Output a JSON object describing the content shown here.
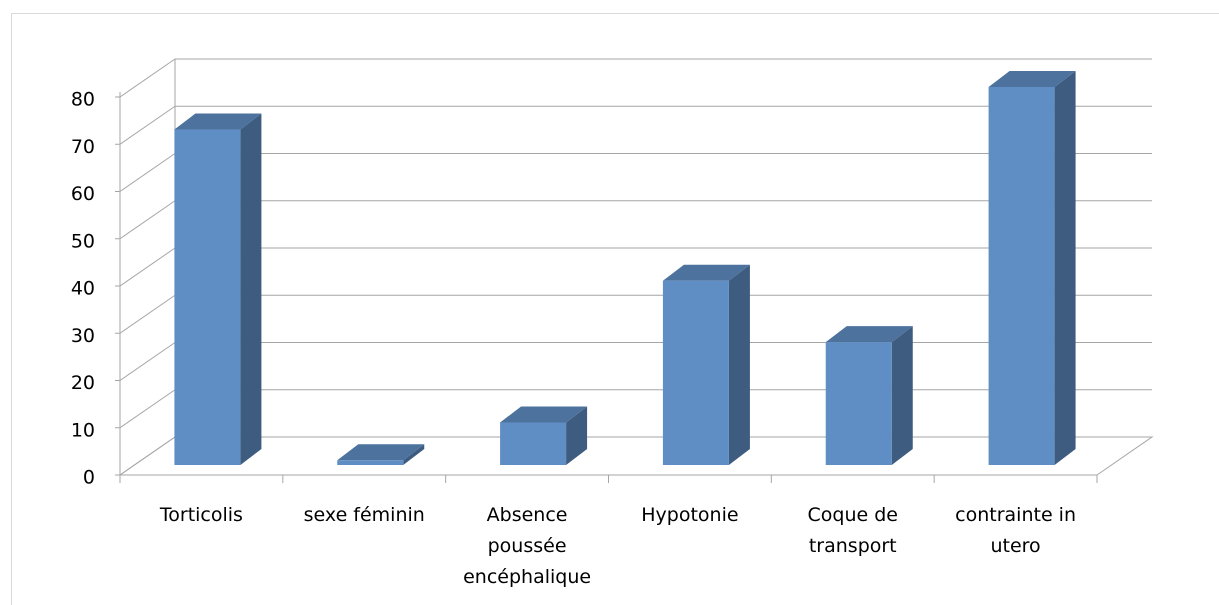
{
  "chart_data": {
    "type": "bar3d",
    "categories": [
      "Torticolis",
      "sexe féminin",
      "Absence poussée encéphalique",
      "Hypotonie",
      "Coque de transport",
      "contrainte in utero"
    ],
    "values": [
      71,
      1,
      9,
      39,
      26,
      80
    ],
    "color": "#5f8ec4",
    "ylim": [
      0,
      80
    ],
    "yticks": [
      0,
      10,
      20,
      30,
      40,
      50,
      60,
      70,
      80
    ],
    "grid": true
  }
}
